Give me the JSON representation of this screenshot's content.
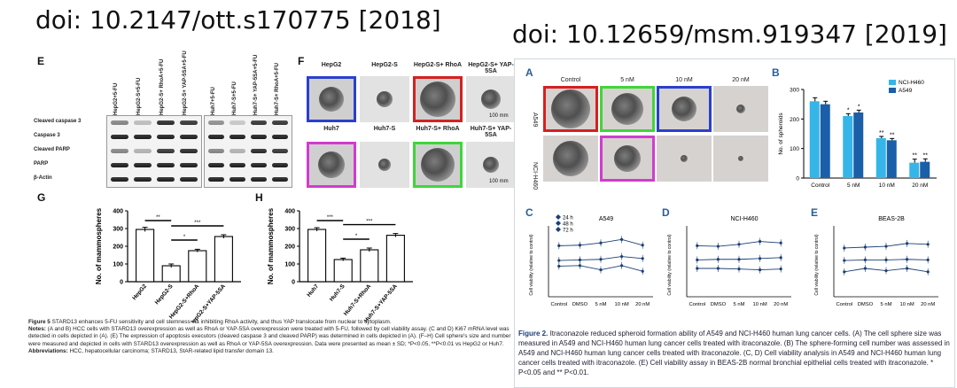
{
  "left": {
    "doi": "doi: 10.2147/ott.s170775 [2018]",
    "panel_E": {
      "label": "E",
      "lanes_hepg2": [
        "HepG2+5-FU",
        "HepG2-S+5-FU",
        "HepG2-S+ RhoA+5-FU",
        "HepG2-S+ YAP-5SA+5-FU"
      ],
      "lanes_huh7": [
        "Huh7+5-FU",
        "Huh7-S+5-FU",
        "Huh7-S+ YAP-5SA+5-FU",
        "Huh7-S+ RhoA+5-FU"
      ],
      "rows": [
        "Cleaved caspase 3",
        "Caspase 3",
        "Cleaved PARP",
        "PARP",
        "β-Actin"
      ]
    },
    "panel_F": {
      "label": "F",
      "top": [
        "HepG2",
        "HepG2-S",
        "HepG2-S+ RhoA",
        "HepG2-S+ YAP-5SA"
      ],
      "bottom": [
        "Huh7",
        "Huh7-S",
        "Huh7-S+ RhoA",
        "Huh7-S+ YAP-5SA"
      ],
      "scale_top": "100 mm",
      "scale_bottom": "100 mm",
      "frame_colors": {
        "blue": "#2b3fcf",
        "red": "#d62020",
        "magenta": "#d23bd0",
        "green": "#3fd63a"
      }
    },
    "panel_G": {
      "label": "G",
      "ylabel": "No. of mammospheres",
      "sig": [
        "**",
        "*",
        "***"
      ],
      "chart_data": {
        "type": "bar",
        "categories": [
          "HepG2",
          "HepG2-S",
          "HepG2-S+RhoA",
          "HepG2-S+YAP-5SA"
        ],
        "values": [
          295,
          90,
          175,
          255
        ],
        "errors": [
          12,
          10,
          8,
          10
        ],
        "ylim": [
          0,
          400
        ],
        "yticks": [
          0,
          100,
          200,
          300,
          400
        ]
      }
    },
    "panel_H": {
      "label": "H",
      "ylabel": "No. of mammospheres",
      "sig": [
        "***",
        "*",
        "***"
      ],
      "chart_data": {
        "type": "bar",
        "categories": [
          "Huh7",
          "Huh7-S",
          "Huh7-S+RhoA",
          "Huh7-S+YAP-5SA"
        ],
        "values": [
          295,
          125,
          180,
          262
        ],
        "errors": [
          10,
          8,
          10,
          10
        ],
        "ylim": [
          0,
          400
        ],
        "yticks": [
          0,
          100,
          200,
          300,
          400
        ]
      }
    },
    "caption": {
      "title_label": "Figure 5",
      "title_text": " STARD13 enhances 5-FU sensitivity and cell stemness via inhibiting RhoA activity, and thus YAP translocate from nuclear to cytoplasm.",
      "notes_label": "Notes:",
      "notes_text": " (A and B) HCC cells with STARD13 overexpression as well as RhoA or YAP-5SA overexpression were treated with 5-FU, followed by cell viability assay. (C and D) Ki67 mRNA level was detected in cells depicted in (A). (E) The expression of apoptosis executors (cleaved caspase 3 and cleaved PARP) was determined in cells depicted in (A). (F–H) Cell sphere's size and number were measured and depicted in cells with STARD13 overexpression as well as RhoA or YAP-5SA overexpression. Data were presented as mean ± SD; *P<0.05, **P<0.01 vs HepG2 or Huh7.",
      "abbr_label": "Abbreviations:",
      "abbr_text": " HCC, hepatocellular carcinoma; STARD13, StAR-related lipid transfer domain 13."
    }
  },
  "right": {
    "doi": "doi: 10.12659/msm.919347 [2019]",
    "panel_A": {
      "label": "A",
      "cols": [
        "Control",
        "5 nM",
        "10 nM",
        "20 nM"
      ],
      "rows": [
        "A549",
        "NCI-H460"
      ]
    },
    "panel_B": {
      "label": "B",
      "ylabel": "No. of spheroids",
      "legend": [
        "NCI-H460",
        "A549"
      ],
      "colors": {
        "NCI-H460": "#35b5e8",
        "A549": "#1a5fa8"
      },
      "chart_data": {
        "type": "bar",
        "categories": [
          "Control",
          "5 nM",
          "10 nM",
          "20 nM"
        ],
        "series": [
          {
            "name": "NCI-H460",
            "values": [
              260,
              210,
              135,
              52
            ],
            "errors": [
              12,
              8,
              6,
              12
            ]
          },
          {
            "name": "A549",
            "values": [
              250,
              222,
              128,
              55
            ],
            "errors": [
              10,
              8,
              6,
              10
            ]
          }
        ],
        "ylim": [
          0,
          300
        ],
        "yticks": [
          0,
          100,
          200,
          300
        ],
        "sig": [
          "*",
          "*",
          "**",
          "**",
          "**",
          "**"
        ]
      }
    },
    "panel_C": {
      "label": "C",
      "title": "A549",
      "ylabel": "Cell viability (relative to control)",
      "legend": [
        "24 h",
        "48 h",
        "72 h"
      ],
      "chart_data": {
        "type": "line",
        "categories": [
          "Control",
          "DMSO",
          "5 nM",
          "10 nM",
          "20 nM"
        ],
        "series": [
          {
            "name": "72 h",
            "values": [
              1.8,
              1.82,
              1.9,
              2.02,
              1.82
            ]
          },
          {
            "name": "48 h",
            "values": [
              1.28,
              1.3,
              1.32,
              1.42,
              1.35
            ]
          },
          {
            "name": "24 h",
            "values": [
              1.08,
              1.1,
              0.95,
              1.1,
              0.9
            ]
          }
        ],
        "ylim": [
          0,
          2.5
        ]
      }
    },
    "panel_D": {
      "label": "D",
      "title": "NCI-H460",
      "ylabel": "Cell viability (relative to control)",
      "chart_data": {
        "type": "line",
        "categories": [
          "Control",
          "DMSO",
          "5 nM",
          "10 nM",
          "20 nM"
        ],
        "series": [
          {
            "name": "72 h",
            "values": [
              1.8,
              1.78,
              1.85,
              1.95,
              1.9
            ]
          },
          {
            "name": "48 h",
            "values": [
              1.3,
              1.32,
              1.32,
              1.35,
              1.38
            ]
          },
          {
            "name": "24 h",
            "values": [
              1.0,
              1.0,
              0.98,
              0.95,
              0.98
            ]
          }
        ],
        "ylim": [
          0,
          2.5
        ]
      }
    },
    "panel_E": {
      "label": "E",
      "title": "BEAS-2B",
      "ylabel": "Cell viability (relative to control)",
      "chart_data": {
        "type": "line",
        "categories": [
          "Control",
          "DMSO",
          "5 nM",
          "10 nM",
          "20 nM"
        ],
        "series": [
          {
            "name": "72 h",
            "values": [
              1.72,
              1.75,
              1.78,
              1.88,
              1.85
            ]
          },
          {
            "name": "48 h",
            "values": [
              1.28,
              1.3,
              1.3,
              1.32,
              1.3
            ]
          },
          {
            "name": "24 h",
            "values": [
              0.88,
              1.0,
              0.92,
              1.0,
              0.88
            ]
          }
        ],
        "ylim": [
          0,
          2.5
        ]
      }
    },
    "caption": {
      "title_label": "Figure 2.",
      "text": " Itraconazole reduced spheroid formation ability of A549 and NCI-H460 human lung cancer cells. (A) The cell sphere size was measured in A549 and NCI-H460 human lung cancer cells treated with itraconazole. (B) The sphere-forming cell number was assessed in A549 and NCI-H460 human lung cancer cells treated with itraconazole. (C, D) Cell viability analysis in A549 and NCI-H460 human lung cancer cells treated with itraconazole. (E) Cell viability assay in BEAS-2B normal bronchial epithelial cells treated with itraconazole. * P<0.05 and ** P<0.01."
    }
  }
}
